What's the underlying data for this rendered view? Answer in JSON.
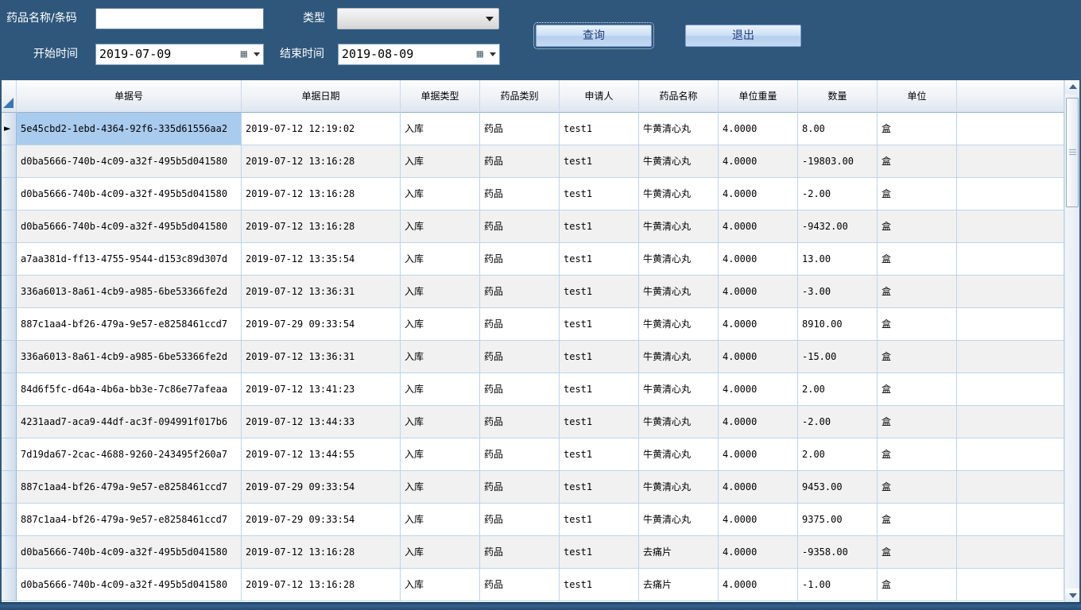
{
  "filter": {
    "drug_name_label": "药品名称/条码",
    "drug_name_value": "",
    "type_label": "类型",
    "type_value": "",
    "start_time_label": "开始时间",
    "start_time_value": "2019-07-09",
    "end_time_label": "结束时间",
    "end_time_value": "2019-08-09",
    "query_button_label": "查询",
    "exit_button_label": "退出"
  },
  "icons": {
    "calendar_icon": "▦",
    "dropdown_arrow_icon": "▼",
    "current_row_icon": "►",
    "scroll_up_icon": "▲",
    "scroll_down_icon": "▼",
    "select_all_corner_icon": "triangle"
  },
  "colors": {
    "panel_bg": "#2F577C",
    "selection": "#A9CBEE",
    "button_face": "#C5D9F2",
    "button_text": "#1E3C78",
    "grid_line": "#BDD4EA",
    "alt_row": "#F1F1F1",
    "corner_triangle": "#3C77B5"
  },
  "grid": {
    "columns": [
      "单据号",
      "单据日期",
      "单据类型",
      "药品类别",
      "申请人",
      "药品名称",
      "单位重量",
      "数量",
      "单位",
      ""
    ],
    "selected_cell": {
      "row": 0,
      "col": 0
    },
    "rows": [
      [
        "5e45cbd2-1ebd-4364-92f6-335d61556aa2",
        "2019-07-12 12:19:02",
        "入库",
        "药品",
        "test1",
        "牛黄清心丸",
        "4.0000",
        "8.00",
        "盒",
        ""
      ],
      [
        "d0ba5666-740b-4c09-a32f-495b5d041580",
        "2019-07-12 13:16:28",
        "入库",
        "药品",
        "test1",
        "牛黄清心丸",
        "4.0000",
        "-19803.00",
        "盒",
        ""
      ],
      [
        "d0ba5666-740b-4c09-a32f-495b5d041580",
        "2019-07-12 13:16:28",
        "入库",
        "药品",
        "test1",
        "牛黄清心丸",
        "4.0000",
        "-2.00",
        "盒",
        ""
      ],
      [
        "d0ba5666-740b-4c09-a32f-495b5d041580",
        "2019-07-12 13:16:28",
        "入库",
        "药品",
        "test1",
        "牛黄清心丸",
        "4.0000",
        "-9432.00",
        "盒",
        ""
      ],
      [
        "a7aa381d-ff13-4755-9544-d153c89d307d",
        "2019-07-12 13:35:54",
        "入库",
        "药品",
        "test1",
        "牛黄清心丸",
        "4.0000",
        "13.00",
        "盒",
        ""
      ],
      [
        "336a6013-8a61-4cb9-a985-6be53366fe2d",
        "2019-07-12 13:36:31",
        "入库",
        "药品",
        "test1",
        "牛黄清心丸",
        "4.0000",
        "-3.00",
        "盒",
        ""
      ],
      [
        "887c1aa4-bf26-479a-9e57-e8258461ccd7",
        "2019-07-29 09:33:54",
        "入库",
        "药品",
        "test1",
        "牛黄清心丸",
        "4.0000",
        "8910.00",
        "盒",
        ""
      ],
      [
        "336a6013-8a61-4cb9-a985-6be53366fe2d",
        "2019-07-12 13:36:31",
        "入库",
        "药品",
        "test1",
        "牛黄清心丸",
        "4.0000",
        "-15.00",
        "盒",
        ""
      ],
      [
        "84d6f5fc-d64a-4b6a-bb3e-7c86e77afeaa",
        "2019-07-12 13:41:23",
        "入库",
        "药品",
        "test1",
        "牛黄清心丸",
        "4.0000",
        "2.00",
        "盒",
        ""
      ],
      [
        "4231aad7-aca9-44df-ac3f-094991f017b6",
        "2019-07-12 13:44:33",
        "入库",
        "药品",
        "test1",
        "牛黄清心丸",
        "4.0000",
        "-2.00",
        "盒",
        ""
      ],
      [
        "7d19da67-2cac-4688-9260-243495f260a7",
        "2019-07-12 13:44:55",
        "入库",
        "药品",
        "test1",
        "牛黄清心丸",
        "4.0000",
        "2.00",
        "盒",
        ""
      ],
      [
        "887c1aa4-bf26-479a-9e57-e8258461ccd7",
        "2019-07-29 09:33:54",
        "入库",
        "药品",
        "test1",
        "牛黄清心丸",
        "4.0000",
        "9453.00",
        "盒",
        ""
      ],
      [
        "887c1aa4-bf26-479a-9e57-e8258461ccd7",
        "2019-07-29 09:33:54",
        "入库",
        "药品",
        "test1",
        "牛黄清心丸",
        "4.0000",
        "9375.00",
        "盒",
        ""
      ],
      [
        "d0ba5666-740b-4c09-a32f-495b5d041580",
        "2019-07-12 13:16:28",
        "入库",
        "药品",
        "test1",
        "去痛片",
        "4.0000",
        "-9358.00",
        "盒",
        ""
      ],
      [
        "d0ba5666-740b-4c09-a32f-495b5d041580",
        "2019-07-12 13:16:28",
        "入库",
        "药品",
        "test1",
        "去痛片",
        "4.0000",
        "-1.00",
        "盒",
        ""
      ]
    ]
  }
}
